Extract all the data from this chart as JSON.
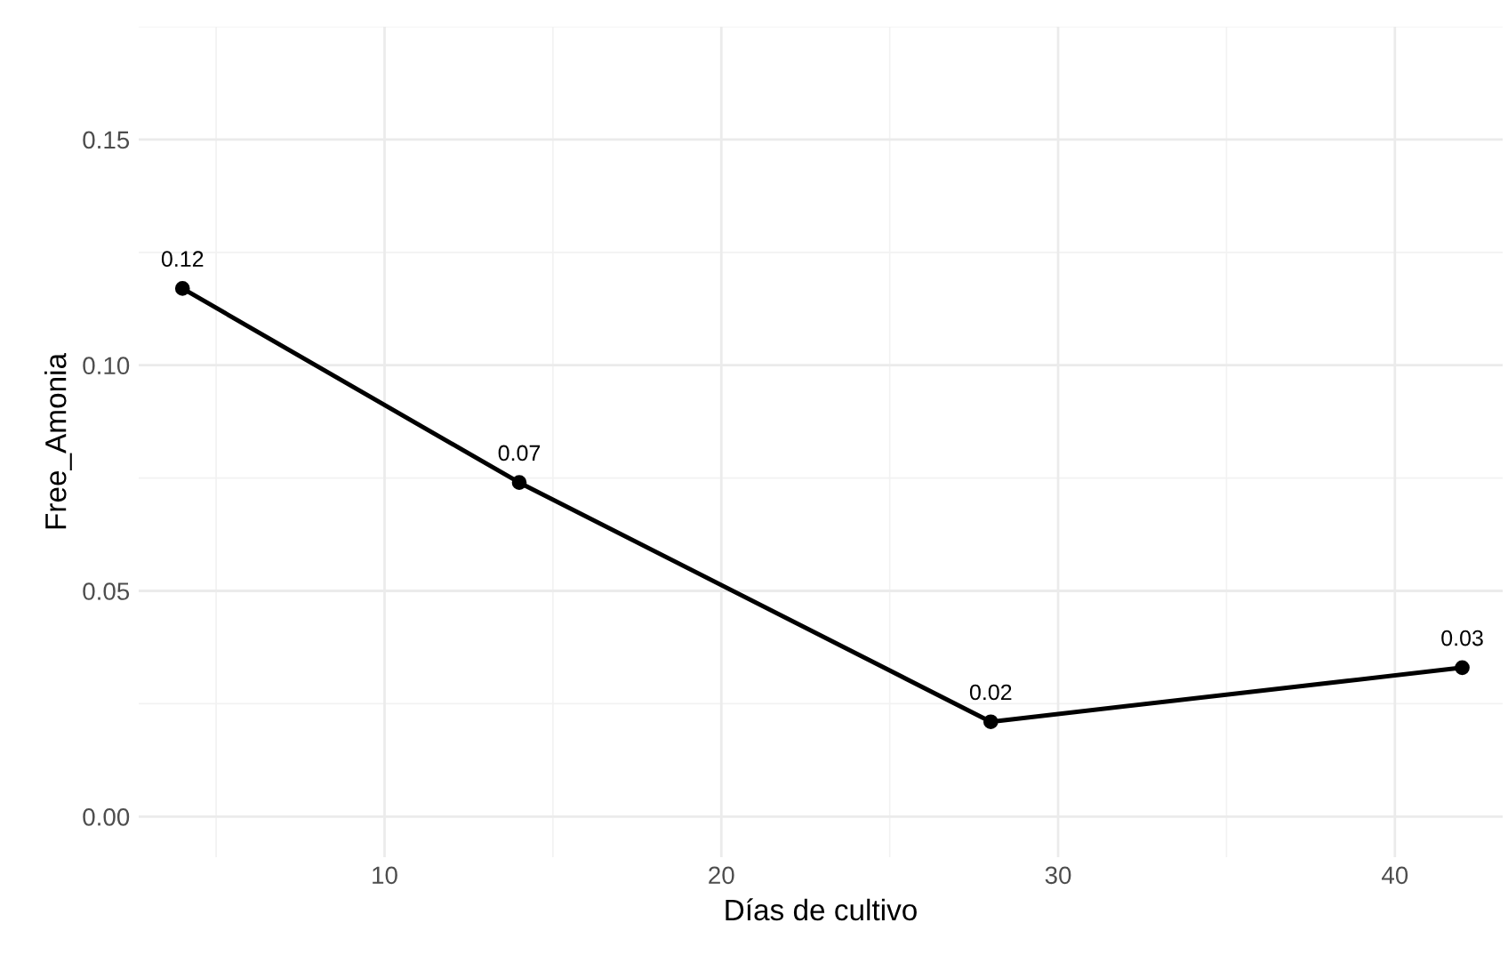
{
  "chart_data": {
    "type": "line",
    "xlabel": "Días de cultivo",
    "ylabel": "Free_Amonia",
    "x": [
      4,
      14,
      28,
      42
    ],
    "series": [
      {
        "color": "#000000",
        "values": [
          0.117,
          0.074,
          0.021,
          0.033
        ],
        "value_labels": [
          "0.12",
          "0.07",
          "0.02",
          "0.03"
        ]
      }
    ],
    "xlim": [
      2.7,
      43.2
    ],
    "ylim": [
      -0.009,
      0.175
    ],
    "xticks": [
      10,
      20,
      30,
      40
    ],
    "yticks": [
      {
        "value": 0,
        "label": "0.00"
      },
      {
        "value": 0.05,
        "label": "0.05"
      },
      {
        "value": 0.1,
        "label": "0.10"
      },
      {
        "value": 0.15,
        "label": "0.15"
      }
    ],
    "grid": true,
    "marker": "circle",
    "line_style": "solid"
  }
}
